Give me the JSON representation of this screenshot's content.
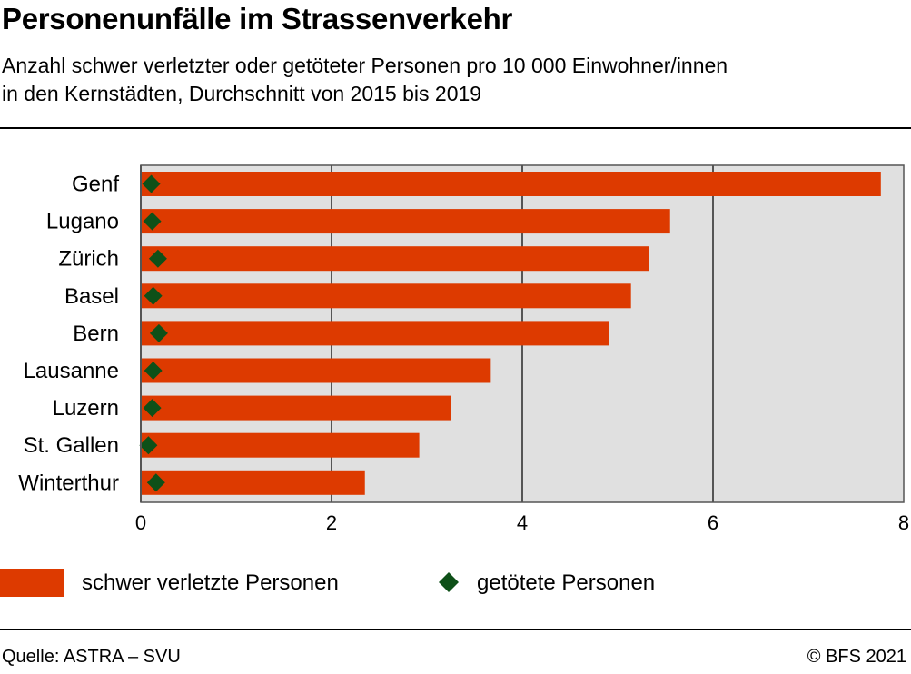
{
  "header": {
    "title": "Personenunfälle im Strassenverkehr",
    "subtitle_line1": "Anzahl schwer verletzter oder getöteter Personen pro 10 000 Einwohner/innen",
    "subtitle_line2": "in den Kernstädten, Durchschnitt von 2015 bis 2019"
  },
  "footer": {
    "source": "Quelle: ASTRA – SVU",
    "copyright": "© BFS 2021"
  },
  "colors": {
    "bar": "#dd3a00",
    "marker": "#0e5018",
    "plot_background": "#e0e0e0",
    "grid": "#555555"
  },
  "chart_data": {
    "type": "bar",
    "orientation": "horizontal",
    "categories": [
      "Genf",
      "Lugano",
      "Zürich",
      "Basel",
      "Bern",
      "Lausanne",
      "Luzern",
      "St. Gallen",
      "Winterthur"
    ],
    "series": [
      {
        "name": "schwer verletzte Personen",
        "mark": "bar",
        "values": [
          7.76,
          5.55,
          5.33,
          5.14,
          4.91,
          3.67,
          3.25,
          2.92,
          2.35
        ]
      },
      {
        "name": "getötete Personen",
        "mark": "diamond",
        "values": [
          0.11,
          0.12,
          0.18,
          0.13,
          0.19,
          0.13,
          0.12,
          0.08,
          0.16
        ]
      }
    ],
    "xlim": [
      0,
      8
    ],
    "xticks": [
      0,
      2,
      4,
      6,
      8
    ],
    "grid": true,
    "legend_position": "bottom-left"
  }
}
